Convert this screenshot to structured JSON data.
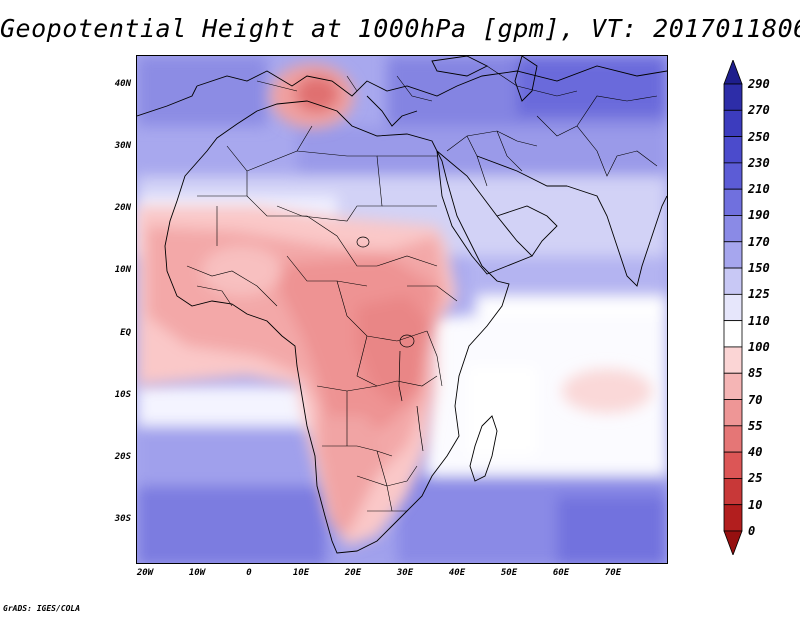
{
  "title": "Geopotential Height at 1000hPa [gpm], VT: 2017011806",
  "credit": "GrADS: IGES/COLA",
  "map": {
    "variable": "Geopotential Height",
    "level": "1000hPa",
    "units": "gpm",
    "valid_time": "2017011806",
    "lat_labels": [
      "40N",
      "30N",
      "20N",
      "10N",
      "EQ",
      "10S",
      "20S",
      "30S"
    ],
    "lon_labels": [
      "20W",
      "10W",
      "0",
      "10E",
      "20E",
      "30E",
      "40E",
      "50E",
      "60E",
      "70E"
    ]
  },
  "colorbar": {
    "labels": [
      "290",
      "270",
      "250",
      "230",
      "210",
      "190",
      "170",
      "150",
      "125",
      "110",
      "100",
      "85",
      "70",
      "55",
      "40",
      "25",
      "10",
      "0"
    ],
    "colors": [
      "#1e1e8c",
      "#2d2da8",
      "#3c3cbe",
      "#4b4bcc",
      "#5c5cd6",
      "#7070de",
      "#8a8ae6",
      "#a6a6ee",
      "#c8c8f5",
      "#e6e6fb",
      "#ffffff",
      "#fbd5d5",
      "#f5b5b5",
      "#ee9696",
      "#e57676",
      "#dc5656",
      "#c83838",
      "#b21e1e",
      "#961010"
    ]
  }
}
